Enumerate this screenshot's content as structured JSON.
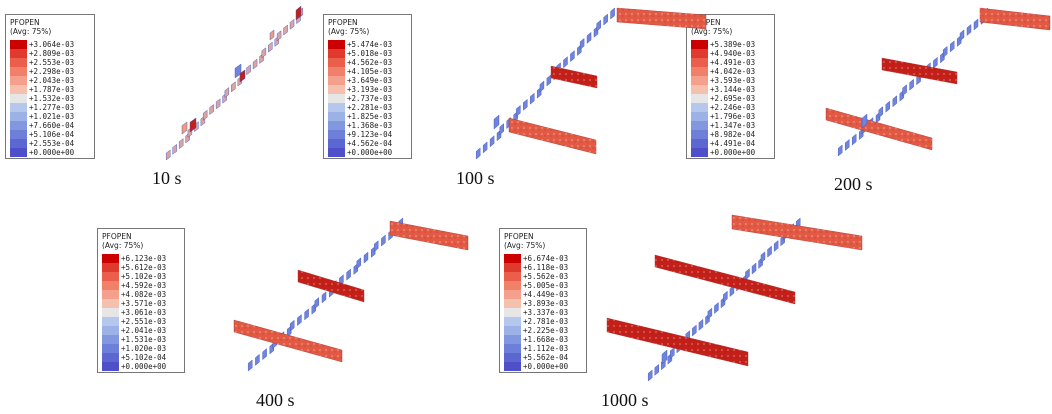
{
  "colors": [
    "#cc0000",
    "#e03a2f",
    "#ea5e4b",
    "#f0806a",
    "#f4a08c",
    "#f5c0ad",
    "#e6e6e6",
    "#b5c7ec",
    "#9cb1e6",
    "#8198df",
    "#6d7fd8",
    "#5d67d1",
    "#4f50c9"
  ],
  "panels": [
    {
      "time": "10 s",
      "legend": {
        "title": "PFOPEN",
        "subtitle": "(Avg: 75%)",
        "values": [
          "+3.064e-03",
          "+2.809e-03",
          "+2.553e-03",
          "+2.298e-03",
          "+2.043e-03",
          "+1.787e-03",
          "+1.532e-03",
          "+1.277e-03",
          "+1.021e-03",
          "+7.660e-04",
          "+5.106e-04",
          "+2.553e-04",
          "+0.000e+00"
        ]
      }
    },
    {
      "time": "100 s",
      "legend": {
        "title": "PFOPEN",
        "subtitle": "(Avg: 75%)",
        "values": [
          "+5.474e-03",
          "+5.018e-03",
          "+4.562e-03",
          "+4.105e-03",
          "+3.649e-03",
          "+3.193e-03",
          "+2.737e-03",
          "+2.281e-03",
          "+1.825e-03",
          "+1.368e-03",
          "+9.123e-04",
          "+4.562e-04",
          "+0.000e+00"
        ]
      }
    },
    {
      "time": "200 s",
      "legend": {
        "title": "PFOPEN",
        "subtitle": "(Avg: 75%)",
        "values": [
          "+5.389e-03",
          "+4.940e-03",
          "+4.491e-03",
          "+4.042e-03",
          "+3.593e-03",
          "+3.144e-03",
          "+2.695e-03",
          "+2.246e-03",
          "+1.796e-03",
          "+1.347e-03",
          "+8.982e-04",
          "+4.491e-04",
          "+0.000e+00"
        ]
      }
    },
    {
      "time": "400 s",
      "legend": {
        "title": "PFOPEN",
        "subtitle": "(Avg: 75%)",
        "values": [
          "+6.123e-03",
          "+5.612e-03",
          "+5.102e-03",
          "+4.592e-03",
          "+4.082e-03",
          "+3.571e-03",
          "+3.061e-03",
          "+2.551e-03",
          "+2.041e-03",
          "+1.531e-03",
          "+1.020e-03",
          "+5.102e-04",
          "+0.000e+00"
        ]
      }
    },
    {
      "time": "1000 s",
      "legend": {
        "title": "PFOPEN",
        "subtitle": "(Avg: 75%)",
        "values": [
          "+6.674e-03",
          "+6.118e-03",
          "+5.562e-03",
          "+5.005e-03",
          "+4.449e-03",
          "+3.893e-03",
          "+3.337e-03",
          "+2.781e-03",
          "+2.225e-03",
          "+1.668e-03",
          "+1.112e-03",
          "+5.562e-04",
          "+0.000e+00"
        ]
      }
    }
  ]
}
